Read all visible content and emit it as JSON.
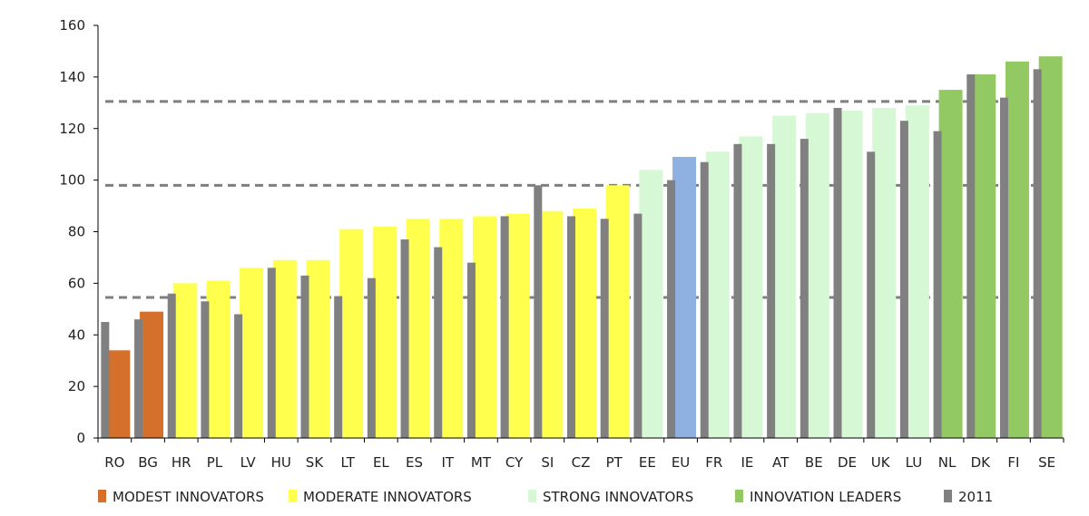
{
  "chart_data": {
    "type": "bar",
    "title": "",
    "xlabel": "",
    "ylabel": "",
    "ylim": [
      0,
      160
    ],
    "yticks": [
      0,
      20,
      40,
      60,
      80,
      100,
      120,
      140,
      160
    ],
    "categories": [
      "RO",
      "BG",
      "HR",
      "PL",
      "LV",
      "HU",
      "SK",
      "LT",
      "EL",
      "ES",
      "IT",
      "MT",
      "CY",
      "SI",
      "CZ",
      "PT",
      "EE",
      "EU",
      "FR",
      "IE",
      "AT",
      "BE",
      "DE",
      "UK",
      "LU",
      "NL",
      "DK",
      "FI",
      "SE"
    ],
    "groups": [
      "modest",
      "modest",
      "moderate",
      "moderate",
      "moderate",
      "moderate",
      "moderate",
      "moderate",
      "moderate",
      "moderate",
      "moderate",
      "moderate",
      "moderate",
      "moderate",
      "moderate",
      "moderate",
      "strong",
      "eu",
      "strong",
      "strong",
      "strong",
      "strong",
      "strong",
      "strong",
      "strong",
      "leader",
      "leader",
      "leader",
      "leader"
    ],
    "series": [
      {
        "name": "",
        "values": [
          34,
          49,
          60,
          61,
          66,
          69,
          69,
          81,
          82,
          85,
          85,
          86,
          87,
          88,
          89,
          98,
          104,
          109,
          111,
          117,
          125,
          126,
          127,
          128,
          129,
          135,
          141,
          146,
          148
        ]
      },
      {
        "name": "2011",
        "values": [
          45,
          46,
          56,
          53,
          48,
          66,
          63,
          55,
          62,
          77,
          74,
          68,
          86,
          98,
          86,
          85,
          87,
          100,
          107,
          114,
          114,
          116,
          128,
          111,
          123,
          119,
          141,
          132,
          143
        ]
      }
    ],
    "reference_lines": [
      54.5,
      98,
      130.5
    ],
    "group_colors": {
      "modest": "#d4702c",
      "moderate": "#ffff4d",
      "strong": "#d7f8d5",
      "leader": "#93c963",
      "eu": "#8fb1e1"
    },
    "series_2011_color": "#808080",
    "reference_line_color": "#7f7f7f",
    "grid": false,
    "legend_position": "bottom",
    "legend": [
      {
        "label": "MODEST INNOVATORS",
        "color": "#d4702c"
      },
      {
        "label": "MODERATE INNOVATORS",
        "color": "#ffff4d"
      },
      {
        "label": "STRONG INNOVATORS",
        "color": "#d7f8d5"
      },
      {
        "label": "INNOVATION LEADERS",
        "color": "#93c963"
      },
      {
        "label": "2011",
        "color": "#808080"
      }
    ]
  }
}
